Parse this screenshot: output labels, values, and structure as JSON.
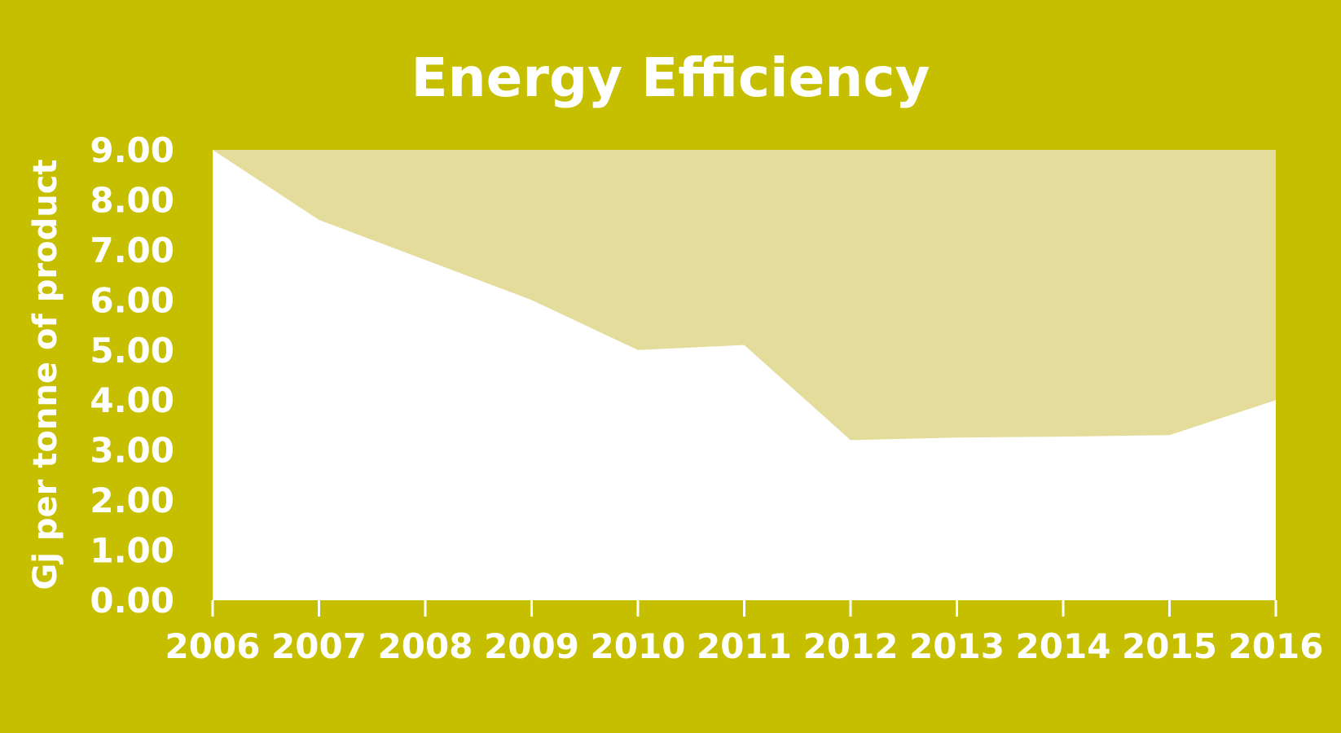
{
  "chart_data": {
    "type": "area",
    "title": "Energy Efficiency",
    "xlabel": "",
    "ylabel": "Gj per tonne of product",
    "x": [
      "2006",
      "2007",
      "2008",
      "2009",
      "2010",
      "2011",
      "2012",
      "2013",
      "2014",
      "2015",
      "2016"
    ],
    "ylim": [
      0,
      9
    ],
    "yticks": [
      "0.00",
      "1.00",
      "2.00",
      "3.00",
      "4.00",
      "5.00",
      "6.00",
      "7.00",
      "8.00",
      "9.00"
    ],
    "series": [
      {
        "values": [
          9.0,
          7.6,
          6.8,
          6.0,
          5.0,
          5.1,
          3.2,
          3.25,
          3.27,
          3.3,
          4.0
        ]
      }
    ],
    "grid": false,
    "colors": {
      "background": "#c5bf00",
      "plot_background": "#e4dc9b",
      "area_fill": "#ffffff",
      "text": "#ffffff"
    }
  }
}
